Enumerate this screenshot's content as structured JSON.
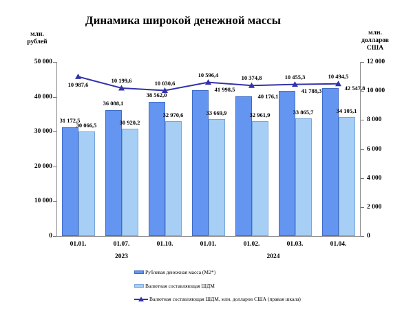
{
  "chart_data": {
    "type": "bar",
    "title": "Динамика широкой денежной массы",
    "categories": [
      "01.01.",
      "01.07.",
      "01.10.",
      "01.01.",
      "01.02.",
      "01.03.",
      "01.04."
    ],
    "year_groups": [
      {
        "label": "2023",
        "from": 0,
        "to": 2
      },
      {
        "label": "2024",
        "from": 3,
        "to": 6
      }
    ],
    "left_axis": {
      "unit_lines": [
        "млн.",
        "рублей"
      ],
      "min": 0,
      "max": 50000,
      "step": 10000,
      "tick_labels": [
        "0",
        "10 000",
        "20 000",
        "30 000",
        "40 000",
        "50 000"
      ]
    },
    "right_axis": {
      "unit_lines": [
        "млн.",
        "долларов",
        "США"
      ],
      "min": 0,
      "max": 12000,
      "step": 2000,
      "tick_labels": [
        "0",
        "2 000",
        "4 000",
        "6 000",
        "8 000",
        "10 000",
        "12 000"
      ]
    },
    "grid": false,
    "legend_position": "bottom",
    "series": [
      {
        "name": "Рублевая денежная масса (М2*)",
        "type": "bar",
        "axis": "left",
        "color": "#6495f0",
        "border_color": "#3f6cc6",
        "values": [
          31172.5,
          36088.1,
          38562.0,
          41998.5,
          40176.1,
          41788.3,
          42547.8
        ],
        "labels": [
          "31 172,5",
          "36 088,1",
          "38 562,0",
          "41 998,5",
          "40 176,1",
          "41 788,3",
          "42 547,8"
        ],
        "label_placement": [
          "above",
          "above",
          "above",
          "right",
          "right",
          "right",
          "right"
        ]
      },
      {
        "name": "Валютная составляющая ШДМ",
        "type": "bar",
        "axis": "left",
        "color": "#a7cef5",
        "border_color": "#76a6da",
        "values": [
          30066.5,
          30920.2,
          32970.6,
          33669.9,
          32961.9,
          33865.7,
          34105.1
        ],
        "labels": [
          "30 066,5",
          "30 920,2",
          "32 970,6",
          "33 669,9",
          "32 961,9",
          "33 865,7",
          "34 105,1"
        ],
        "label_placement": [
          "above",
          "above",
          "above",
          "above",
          "above",
          "above",
          "above"
        ]
      },
      {
        "name": "Валютная составляющая ШДМ, млн. долларов США (правая шкала)",
        "type": "line",
        "axis": "right",
        "color": "#3232aa",
        "marker": "triangle",
        "values": [
          10987.6,
          10199.6,
          10030.6,
          10596.4,
          10374.8,
          10455.3,
          10494.5
        ],
        "labels": [
          "10 987,6",
          "10 199,6",
          "10 030,6",
          "10 596,4",
          "10 374,8",
          "10 455,3",
          "10 494,5"
        ],
        "label_placement": [
          "below",
          "above",
          "above",
          "above",
          "above",
          "above",
          "above"
        ]
      }
    ]
  }
}
